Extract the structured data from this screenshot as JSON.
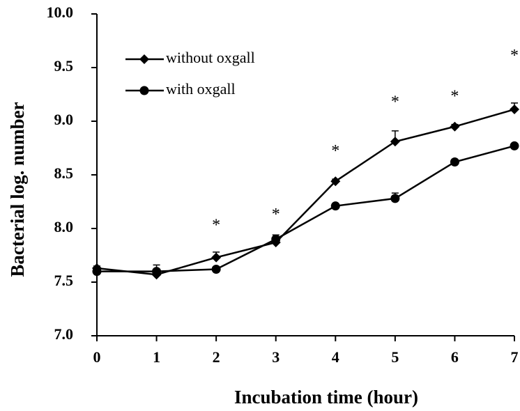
{
  "chart_data": {
    "type": "line",
    "xlabel": "Incubation time (hour)",
    "ylabel": "Bacterial log. number",
    "x": [
      0,
      1,
      2,
      3,
      4,
      5,
      6,
      7
    ],
    "series": [
      {
        "name": "without oxgall",
        "color": "#000000",
        "marker": "diamond",
        "values": [
          7.63,
          7.57,
          7.73,
          7.87,
          8.44,
          8.81,
          8.95,
          9.11
        ],
        "errors": [
          0.02,
          0.02,
          0.05,
          0.03,
          0.02,
          0.1,
          0.02,
          0.06
        ]
      },
      {
        "name": "with oxgall",
        "color": "#000000",
        "marker": "circle",
        "values": [
          7.6,
          7.6,
          7.62,
          7.9,
          8.21,
          8.28,
          8.62,
          8.77
        ],
        "errors": [
          0.02,
          0.06,
          0.02,
          0.04,
          0.02,
          0.05,
          0.02,
          0.02
        ]
      }
    ],
    "annotations": [
      {
        "text": "*",
        "x": 2,
        "y": 8.02
      },
      {
        "text": "*",
        "x": 3,
        "y": 8.12
      },
      {
        "text": "*",
        "x": 4,
        "y": 8.71
      },
      {
        "text": "*",
        "x": 5,
        "y": 9.17
      },
      {
        "text": "*",
        "x": 6,
        "y": 9.22
      },
      {
        "text": "*",
        "x": 7,
        "y": 9.6
      }
    ],
    "xlim": [
      0,
      7
    ],
    "xticks": [
      0,
      1,
      2,
      3,
      4,
      5,
      6,
      7
    ],
    "ylim": [
      7,
      10
    ],
    "yticks": [
      {
        "value": 7,
        "label": "7.0"
      },
      7.5,
      {
        "value": 8,
        "label": "8.0"
      },
      8.5,
      {
        "value": 9,
        "label": "9.0"
      },
      9.5,
      {
        "value": 10,
        "label": "10.0"
      }
    ],
    "grid": false,
    "legend": "upper left"
  }
}
